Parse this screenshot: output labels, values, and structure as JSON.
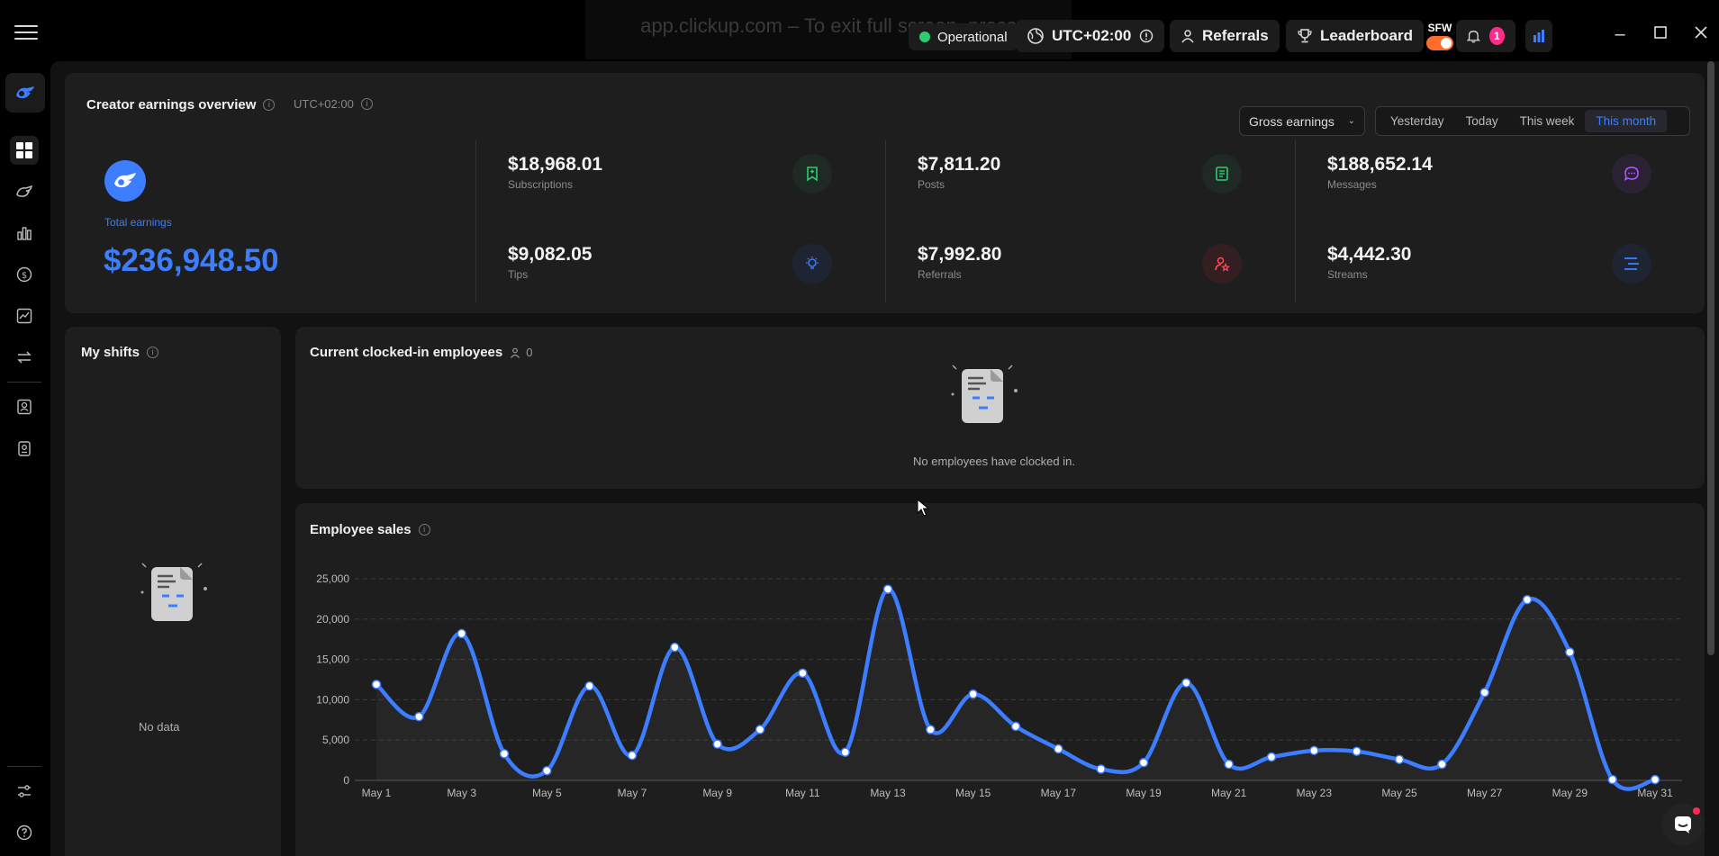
{
  "browser": {
    "fullscreen_message": "app.clickup.com – To exit full screen, press"
  },
  "topbar": {
    "status": "Operational",
    "timezone": "UTC+02:00",
    "referrals": "Referrals",
    "leaderboard": "Leaderboard",
    "sfw": "SFW",
    "notification_count": "1"
  },
  "earnings": {
    "title": "Creator earnings overview",
    "timezone": "UTC+02:00",
    "dropdown": "Gross earnings",
    "ranges": [
      "Yesterday",
      "Today",
      "This week",
      "This month"
    ],
    "active_range": "This month",
    "total_label": "Total earnings",
    "total_value": "$236,948.50",
    "metrics": [
      {
        "value": "$18,968.01",
        "label": "Subscriptions",
        "icon": "bookmark-icon",
        "color": "#2ecc71"
      },
      {
        "value": "$7,811.20",
        "label": "Posts",
        "icon": "document-icon",
        "color": "#2ecc71"
      },
      {
        "value": "$188,652.14",
        "label": "Messages",
        "icon": "chat-bubble-icon",
        "color": "#b35cff"
      },
      {
        "value": "$9,082.05",
        "label": "Tips",
        "icon": "lightbulb-icon",
        "color": "#3d7dff"
      },
      {
        "value": "$7,992.80",
        "label": "Referrals",
        "icon": "user-star-icon",
        "color": "#ff4d5a"
      },
      {
        "value": "$4,442.30",
        "label": "Streams",
        "icon": "stream-icon",
        "color": "#3d7dff"
      }
    ]
  },
  "shifts": {
    "title": "My shifts",
    "empty": "No data"
  },
  "clocked_in": {
    "title": "Current clocked-in employees",
    "count": "0",
    "empty": "No employees have clocked in."
  },
  "sales": {
    "title": "Employee sales"
  },
  "colors": {
    "accent": "#3d7dff",
    "operational": "#2ecc71",
    "toggle": "#ff6b2c",
    "badge": "#ff2b8a"
  },
  "chart_data": {
    "type": "area",
    "title": "Employee sales",
    "xlabel": "",
    "ylabel": "",
    "ylim": [
      0,
      25000
    ],
    "yticks": [
      "0",
      "5,000",
      "10,000",
      "15,000",
      "20,000",
      "25,000"
    ],
    "x": [
      "May 1",
      "May 2",
      "May 3",
      "May 4",
      "May 5",
      "May 6",
      "May 7",
      "May 8",
      "May 9",
      "May 10",
      "May 11",
      "May 12",
      "May 13",
      "May 14",
      "May 15",
      "May 16",
      "May 17",
      "May 18",
      "May 19",
      "May 20",
      "May 21",
      "May 22",
      "May 23",
      "May 24",
      "May 25",
      "May 26",
      "May 27",
      "May 28",
      "May 29",
      "May 30",
      "May 31"
    ],
    "xtick_labels": [
      "May 1",
      "May 3",
      "May 5",
      "May 7",
      "May 9",
      "May 11",
      "May 13",
      "May 15",
      "May 17",
      "May 19",
      "May 21",
      "May 23",
      "May 25",
      "May 27",
      "May 29",
      "May 31"
    ],
    "values": [
      11900,
      7900,
      18200,
      3300,
      1200,
      11700,
      3100,
      16500,
      4500,
      6300,
      13300,
      3500,
      23700,
      6300,
      10700,
      6700,
      3900,
      1400,
      2200,
      12100,
      2000,
      2900,
      3700,
      3600,
      2600,
      2000,
      10900,
      22400,
      15900,
      100,
      100
    ],
    "grid": true,
    "legend": "none"
  }
}
